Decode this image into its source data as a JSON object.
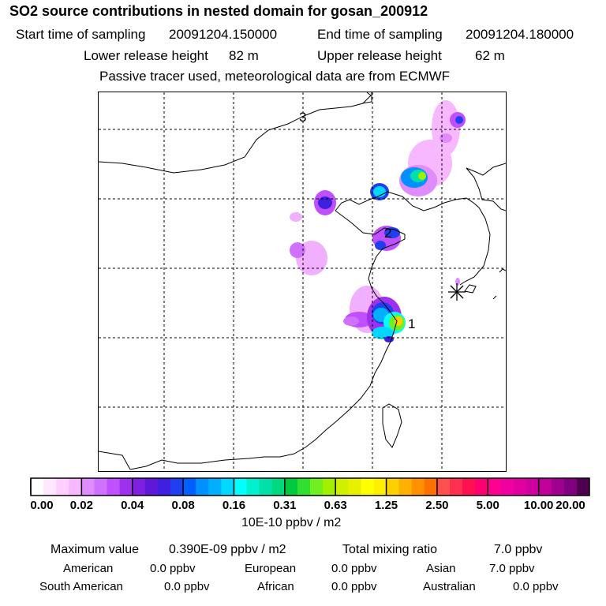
{
  "header": {
    "title": "SO2 source contributions in nested domain for gosan_200912",
    "start_label": "Start time of sampling",
    "start_value": "20091204.150000",
    "end_label": "End time of sampling",
    "end_value": "20091204.180000",
    "lower_label": "Lower release height",
    "lower_value": "82 m",
    "upper_label": "Upper release height",
    "upper_value": "62 m",
    "note": "Passive tracer used, meteorological data are from ECMWF"
  },
  "map": {
    "markers": [
      {
        "label": "1",
        "kind": "source-cluster"
      },
      {
        "label": "2",
        "kind": "source-cluster"
      },
      {
        "label": "3",
        "kind": "source-cluster"
      }
    ],
    "receptor_symbol": "asterisk"
  },
  "colorbar": {
    "ticks": [
      "0.00",
      "0.02",
      "0.04",
      "0.08",
      "0.16",
      "0.31",
      "0.63",
      "1.25",
      "2.50",
      "5.00",
      "10.00",
      "20.00"
    ],
    "colors": [
      [
        "#ffffff",
        "#ffe8ff",
        "#ffd0ff",
        "#f7b8ff"
      ],
      [
        "#e08cff",
        "#d070ff",
        "#c050ff",
        "#a030f0"
      ],
      [
        "#8020e0",
        "#6018d8",
        "#4020e0",
        "#2040f0"
      ],
      [
        "#0060ff",
        "#0090ff",
        "#00b0ff",
        "#00d8ff"
      ],
      [
        "#00ffff",
        "#00f0d0",
        "#00e0a8",
        "#00d880"
      ],
      [
        "#00c840",
        "#30e030",
        "#70f020",
        "#a0f000"
      ],
      [
        "#d0f000",
        "#e8f000",
        "#ffff00",
        "#fff000"
      ],
      [
        "#ffd000",
        "#ffb000",
        "#ff9000",
        "#ff7000"
      ],
      [
        "#ff5050",
        "#ff3050",
        "#ff1050",
        "#ff0070"
      ],
      [
        "#ff0090",
        "#f000a0",
        "#e000a0",
        "#d000a0"
      ],
      [
        "#c00098",
        "#a00090",
        "#800080",
        "#500050"
      ]
    ],
    "unit": "10E-10 ppbv / m2"
  },
  "stats": {
    "max_label": "Maximum value",
    "max_value": "0.390E-09 ppbv / m2",
    "total_label": "Total mixing ratio",
    "total_value": "7.0 ppbv",
    "regions": [
      {
        "name": "American",
        "value": "0.0 ppbv"
      },
      {
        "name": "European",
        "value": "0.0 ppbv"
      },
      {
        "name": "Asian",
        "value": "7.0 ppbv"
      },
      {
        "name": "South American",
        "value": "0.0 ppbv"
      },
      {
        "name": "African",
        "value": "0.0 ppbv"
      },
      {
        "name": "Australian",
        "value": "0.0 ppbv"
      }
    ]
  }
}
